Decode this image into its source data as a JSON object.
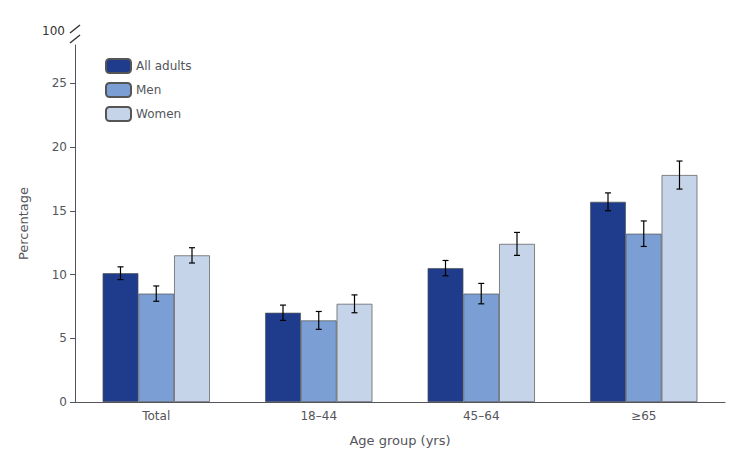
{
  "chart_data": {
    "type": "bar",
    "categories": [
      "Total",
      "18–44",
      "45–64",
      "≥65"
    ],
    "series": [
      {
        "name": "All adults",
        "color": "#1f3b8c",
        "values": [
          10.1,
          7.0,
          10.5,
          15.7
        ],
        "errors": [
          0.5,
          0.6,
          0.6,
          0.7
        ]
      },
      {
        "name": "Men",
        "color": "#7b9fd4",
        "values": [
          8.5,
          6.4,
          8.5,
          13.2
        ],
        "errors": [
          0.6,
          0.7,
          0.8,
          1.0
        ]
      },
      {
        "name": "Women",
        "color": "#c5d4e8",
        "values": [
          11.5,
          7.7,
          12.4,
          17.8
        ],
        "errors": [
          0.6,
          0.7,
          0.9,
          1.1
        ]
      }
    ],
    "xlabel": "Age group (yrs)",
    "ylabel": "Percentage",
    "ylim": [
      0,
      28
    ],
    "yticks": [
      0,
      5,
      10,
      15,
      20,
      25
    ],
    "grid": false,
    "legend": "upper left",
    "annotations": [
      {
        "text": "100"
      }
    ]
  }
}
